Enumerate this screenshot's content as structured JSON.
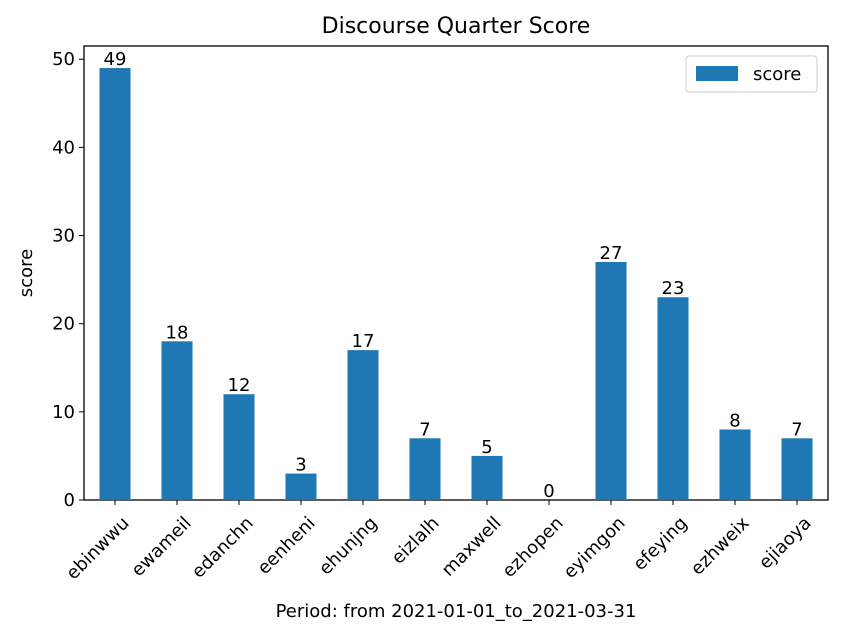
{
  "chart_data": {
    "type": "bar",
    "title": "Discourse Quarter Score",
    "xlabel": "Period: from 2021-01-01_to_2021-03-31",
    "ylabel": "score",
    "categories": [
      "ebinwwu",
      "ewameil",
      "edanchn",
      "eenheni",
      "ehunjng",
      "eizlalh",
      "maxwell",
      "ezhopen",
      "eyimgon",
      "efeying",
      "ezhweix",
      "ejiaoya"
    ],
    "series": [
      {
        "name": "score",
        "values": [
          49,
          18,
          12,
          3,
          17,
          7,
          5,
          0,
          27,
          23,
          8,
          7
        ]
      }
    ],
    "ylim": [
      0,
      51.5
    ],
    "yticks": [
      0,
      10,
      20,
      30,
      40,
      50
    ],
    "grid": false,
    "legend_position": "top-right",
    "bar_color": "#1f77b4"
  }
}
